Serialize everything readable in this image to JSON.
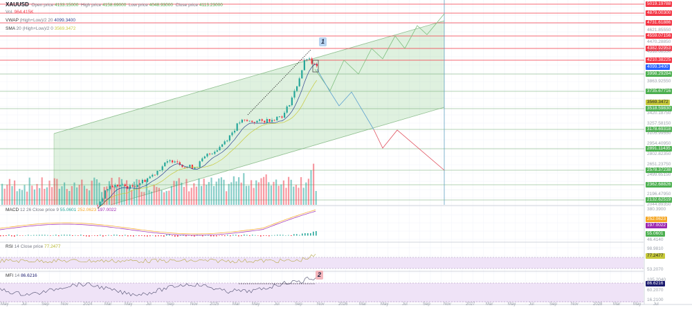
{
  "header": {
    "symbol": "XAUUSD",
    "open_label": "Open price",
    "open_value": "4133.15000",
    "high_label": "High price",
    "high_value": "4158.69000",
    "low_label": "Low price",
    "low_value": "4048.93000",
    "close_label": "Close price",
    "close_value": "4113.23000",
    "vol_label": "Vol.",
    "vol_value": "964.415K",
    "vwap_label": "VWAP",
    "vwap_params": "(High+Low)/2 20",
    "vwap_value": "4099.3400",
    "sma_label": "SMA",
    "sma_params": "20 (High+Low)/2 0",
    "sma_value": "3569.3472"
  },
  "macd": {
    "label": "MACD",
    "params": "12 26 Close price 9",
    "v1": "55.0601",
    "v2": "252.0623",
    "v3": "197.0022"
  },
  "rsi": {
    "label": "RSI",
    "params": "14 Close price",
    "value": "77.2477"
  },
  "mfi": {
    "label": "MFI",
    "params": "14",
    "value": "86.6216"
  },
  "annotations": {
    "label1": "1",
    "label2": "2"
  },
  "colors": {
    "red": "#f23645",
    "green": "#4caf50",
    "blue": "#2962ff",
    "yellow": "#c7c93a",
    "purple": "#9c27b0",
    "navy": "#1a1a6e",
    "orange": "#f5a623"
  },
  "price_axis": [
    {
      "v": "5019.19788",
      "k": "red"
    },
    {
      "v": "4879.00300",
      "k": "red"
    },
    {
      "v": "4731.61886",
      "k": "red"
    },
    {
      "v": "4621.85550",
      "k": "gray"
    },
    {
      "v": "4559.07156",
      "k": "red"
    },
    {
      "v": "4470.28850",
      "k": "gray"
    },
    {
      "v": "4382.92953",
      "k": "red"
    },
    {
      "v": "4318.68550",
      "k": "gray"
    },
    {
      "v": "4210.38225",
      "k": "red"
    },
    {
      "v": "4099.3400",
      "k": "blue"
    },
    {
      "v": "3998.29284",
      "k": "green"
    },
    {
      "v": "3863.92550",
      "k": "gray"
    },
    {
      "v": "3735.67716",
      "k": "green"
    },
    {
      "v": "3569.3472",
      "k": "yellow"
    },
    {
      "v": "3518.59830",
      "k": "green"
    },
    {
      "v": "3420.18750",
      "k": "gray"
    },
    {
      "v": "3257.58150",
      "k": "gray"
    },
    {
      "v": "3178.69318",
      "k": "green"
    },
    {
      "v": "3105.99550",
      "k": "gray"
    },
    {
      "v": "2954.40950",
      "k": "gray"
    },
    {
      "v": "2891.11435",
      "k": "green"
    },
    {
      "v": "2802.82350",
      "k": "gray"
    },
    {
      "v": "2651.23750",
      "k": "gray"
    },
    {
      "v": "2578.37238",
      "k": "green"
    },
    {
      "v": "2499.65150",
      "k": "gray"
    },
    {
      "v": "2362.68826",
      "k": "green"
    },
    {
      "v": "2196.47950",
      "k": "gray"
    },
    {
      "v": "2132.62519",
      "k": "green"
    },
    {
      "v": "2044.89350",
      "k": "gray"
    }
  ],
  "indicator_axis": [
    {
      "v": "380.3900",
      "k": "gray"
    },
    {
      "v": "252.0623",
      "k": "orange"
    },
    {
      "v": "197.0022",
      "k": "purple"
    },
    {
      "v": "55.0601",
      "k": "green"
    },
    {
      "v": "46.4140",
      "k": "gray"
    },
    {
      "v": "98.9810",
      "k": "gray"
    },
    {
      "v": "77.2477",
      "k": "yellow"
    },
    {
      "v": "53.2070",
      "k": "gray"
    },
    {
      "v": "105.2040",
      "k": "gray"
    },
    {
      "v": "86.6216",
      "k": "navy"
    },
    {
      "v": "60.2070",
      "k": "gray"
    },
    {
      "v": "16.2100",
      "k": "gray"
    }
  ],
  "time_axis": [
    "May",
    "Jul",
    "Sep",
    "Nov",
    "2024",
    "Mar",
    "May",
    "Jul",
    "Sep",
    "Nov",
    "2025",
    "Mar",
    "May",
    "Jul",
    "Sep",
    "Nov",
    "2026",
    "Mar",
    "May",
    "Jul",
    "Sep",
    "Nov",
    "2027",
    "Mar",
    "May",
    "Jul",
    "Sep",
    "Nov",
    "2028",
    "Mar",
    "May",
    "Jul"
  ],
  "chart_data": {
    "type": "candlestick",
    "symbol": "XAUUSD",
    "interval": "weekly",
    "monthly_close_path": [
      2050,
      2330,
      2350,
      2320,
      2400,
      2500,
      2650,
      2740,
      2620,
      2630,
      2800,
      2900,
      3080,
      3300,
      3300,
      3300,
      3340,
      3400,
      3750,
      4250,
      4100
    ],
    "levels_resistance": [
      5019.19788,
      4879.003,
      4731.61886,
      4559.07156,
      4382.92953,
      4210.38225
    ],
    "levels_support": [
      3998.29284,
      3735.67716,
      3518.5983,
      3178.69318,
      2891.11435,
      2578.37238,
      2362.68826,
      2132.62519
    ]
  }
}
